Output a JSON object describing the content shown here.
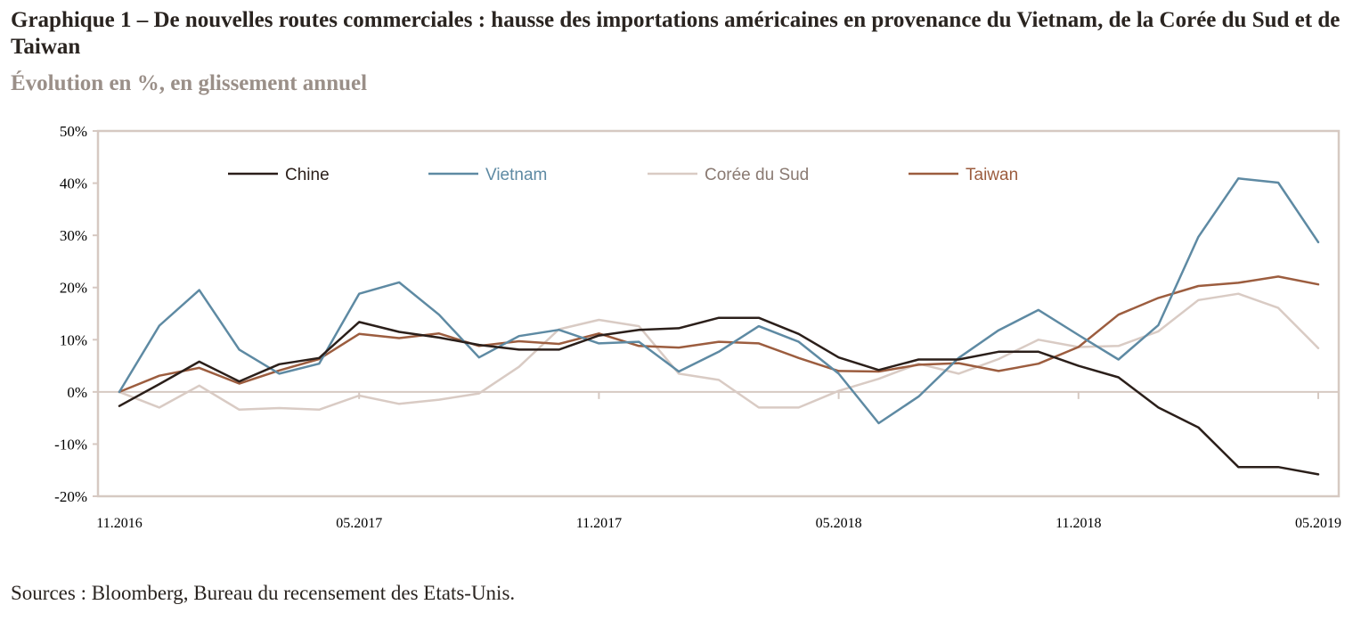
{
  "title": "Graphique 1 – De nouvelles routes commerciales : hausse des importations américaines en provenance du Vietnam, de la Corée du Sud et de Taiwan",
  "subtitle": "Évolution en %, en glissement annuel",
  "source": "Sources : Bloomberg, Bureau du recensement des Etats-Unis.",
  "colors": {
    "frame": "#d6c9c2",
    "axis_text": "#000000",
    "zero_line": "#d6c9c2"
  },
  "chart_data": {
    "type": "line",
    "ylim": [
      -20,
      50
    ],
    "yticks": [
      -20,
      -10,
      0,
      10,
      20,
      30,
      40,
      50
    ],
    "ytick_labels": [
      "-20%",
      "-10%",
      "0%",
      "10%",
      "20%",
      "30%",
      "40%",
      "50%"
    ],
    "x_tick_labels": [
      "11.2016",
      "05.2017",
      "11.2017",
      "05.2018",
      "11.2018",
      "05.2019"
    ],
    "legend_position": "top",
    "grid": false,
    "series": [
      {
        "name": "Chine",
        "color": "#2b1f1a",
        "values": [
          -2.7,
          1.5,
          5.8,
          2.0,
          5.3,
          6.5,
          13.4,
          11.5,
          10.4,
          9.0,
          8.1,
          8.1,
          10.8,
          11.9,
          12.2,
          14.2,
          14.2,
          11.1,
          6.6,
          4.2,
          6.2,
          6.2,
          7.7,
          7.7,
          5.0,
          2.8,
          -3.0,
          -6.8,
          -14.4,
          -14.4,
          -15.8
        ]
      },
      {
        "name": "Vietnam",
        "color": "#5e8aa3",
        "values": [
          0.0,
          12.7,
          19.5,
          8.1,
          3.5,
          5.4,
          18.8,
          21.0,
          14.8,
          6.6,
          10.7,
          11.9,
          9.3,
          9.6,
          3.9,
          7.7,
          12.6,
          9.6,
          3.5,
          -6.0,
          -0.9,
          6.5,
          11.8,
          15.7,
          10.9,
          6.2,
          12.8,
          29.7,
          40.9,
          40.1,
          28.7
        ]
      },
      {
        "name": "Corée du Sud",
        "color": "#d9cbc4",
        "values": [
          0.0,
          -3.0,
          1.2,
          -3.4,
          -3.1,
          -3.4,
          -0.7,
          -2.3,
          -1.5,
          -0.3,
          4.8,
          12.0,
          13.8,
          12.6,
          3.5,
          2.3,
          -3.0,
          -3.0,
          0.2,
          2.5,
          5.4,
          3.5,
          6.3,
          10.0,
          8.6,
          8.8,
          11.6,
          17.6,
          18.8,
          16.1,
          8.4
        ]
      },
      {
        "name": "Taiwan",
        "color": "#9c5d3f",
        "values": [
          0.0,
          3.1,
          4.6,
          1.6,
          4.1,
          6.3,
          11.1,
          10.3,
          11.2,
          8.8,
          9.7,
          9.2,
          11.2,
          8.8,
          8.5,
          9.6,
          9.3,
          6.5,
          4.0,
          3.9,
          5.2,
          5.5,
          4.0,
          5.4,
          8.6,
          14.8,
          18.0,
          20.3,
          20.9,
          22.1,
          20.6
        ]
      }
    ]
  }
}
